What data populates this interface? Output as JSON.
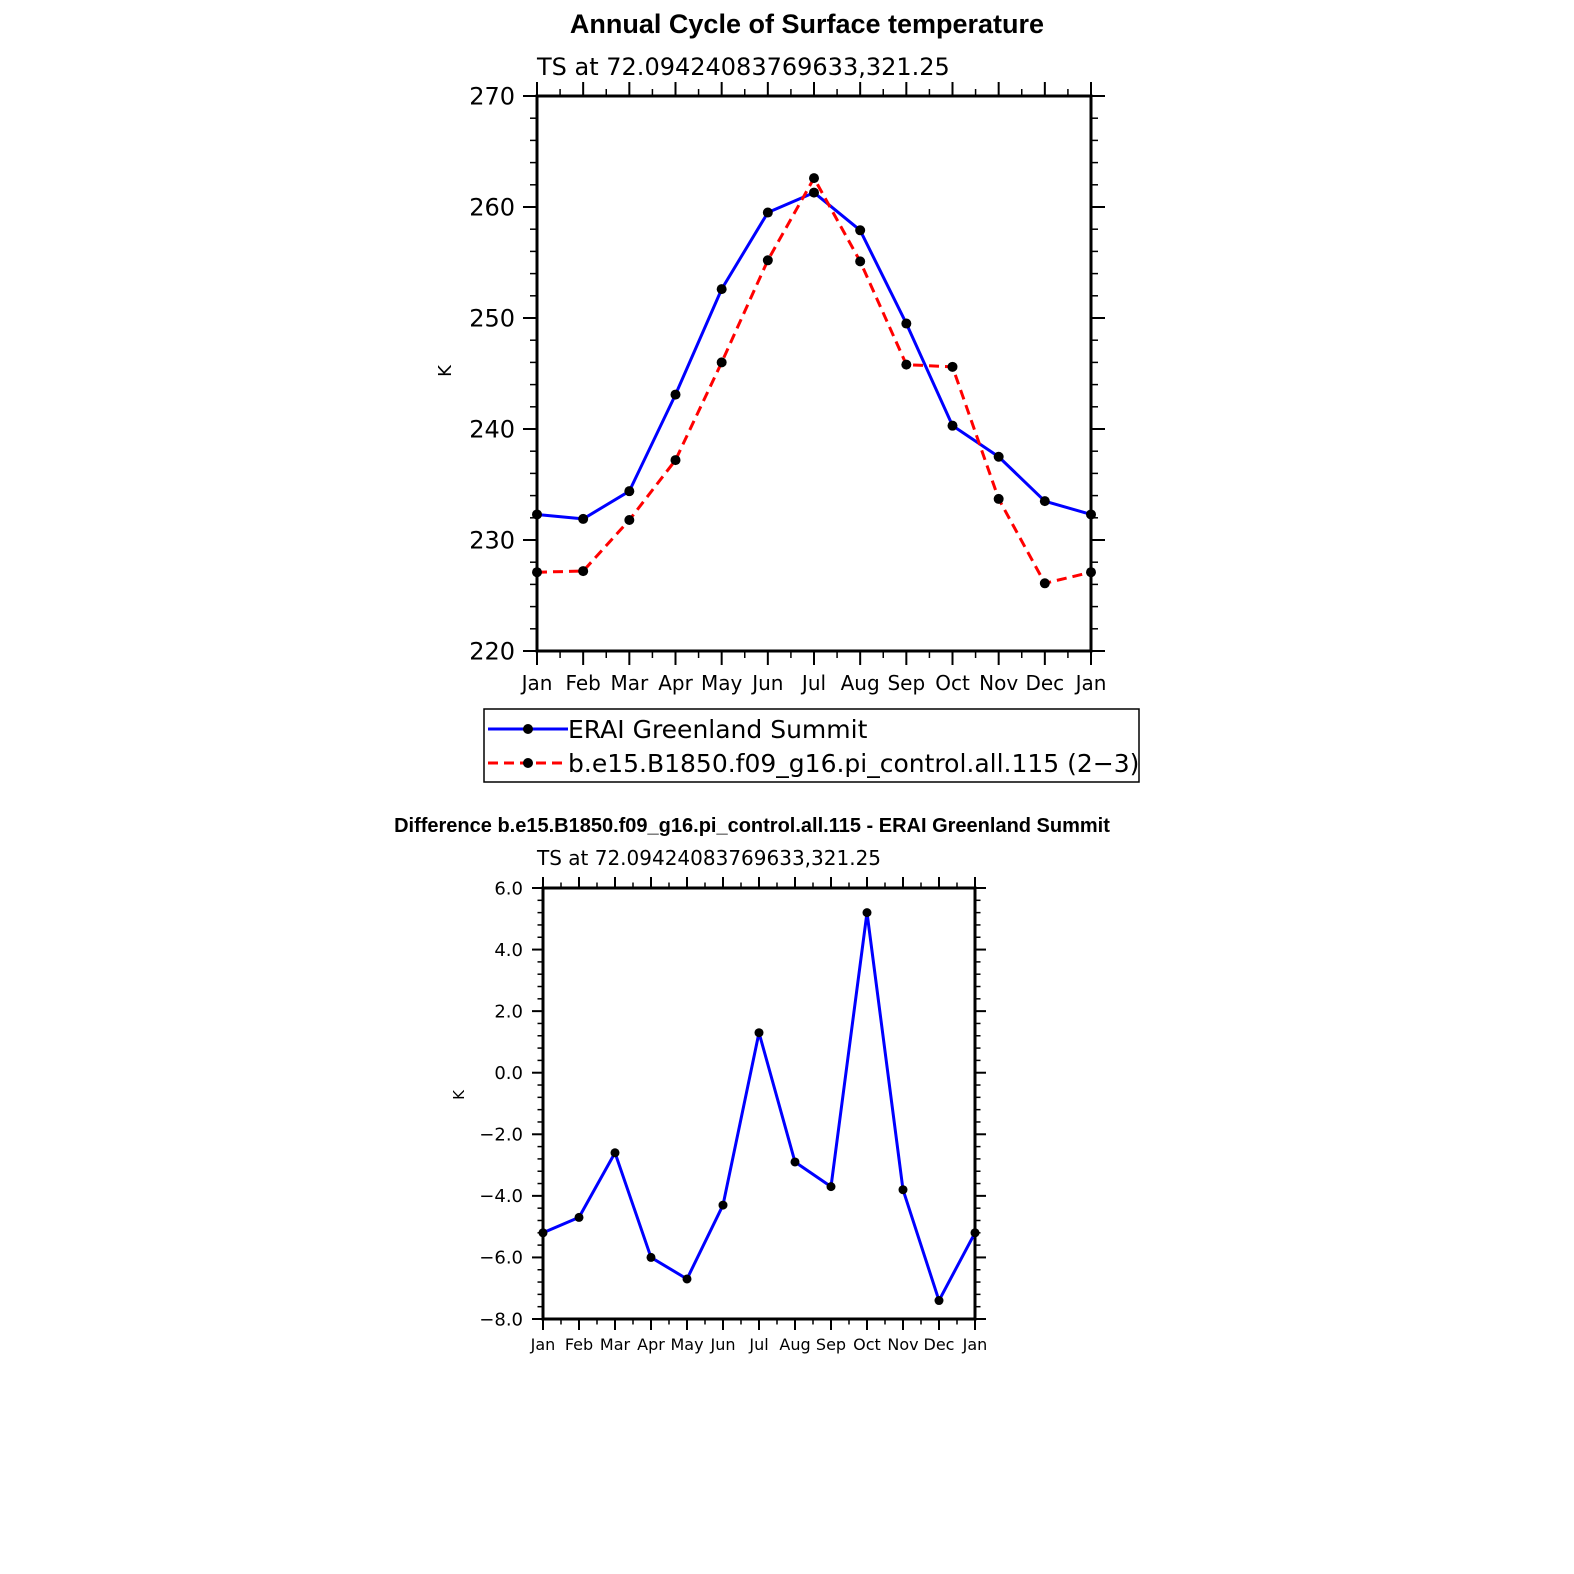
{
  "colors": {
    "series1": "#0000ff",
    "series2": "#ff0000",
    "marker": "#000000",
    "axis": "#000000"
  },
  "chart_data": [
    {
      "type": "line",
      "title": "Annual Cycle of Surface temperature",
      "subtitle": "TS at 72.09424083769633,321.25",
      "ylabel": "K",
      "xlabel": "",
      "categories": [
        "Jan",
        "Feb",
        "Mar",
        "Apr",
        "May",
        "Jun",
        "Jul",
        "Aug",
        "Sep",
        "Oct",
        "Nov",
        "Dec",
        "Jan"
      ],
      "ylim": [
        220,
        270
      ],
      "yticks": [
        "220",
        "230",
        "240",
        "250",
        "260",
        "270"
      ],
      "legend_position": "bottom",
      "series": [
        {
          "name": "ERAI Greenland Summit",
          "style": "solid",
          "color": "#0000ff",
          "values": [
            232.3,
            231.9,
            234.4,
            243.1,
            252.6,
            259.5,
            261.3,
            257.9,
            249.5,
            240.3,
            237.5,
            233.5,
            232.3
          ]
        },
        {
          "name": "b.e15.B1850.f09_g16.pi_control.all.115 (2−3)",
          "style": "dashed",
          "color": "#ff0000",
          "values": [
            227.1,
            227.2,
            231.8,
            237.2,
            246.0,
            255.2,
            262.6,
            255.1,
            245.8,
            245.6,
            233.7,
            226.1,
            227.1
          ]
        }
      ]
    },
    {
      "type": "line",
      "title": "Difference b.e15.B1850.f09_g16.pi_control.all.115 - ERAI Greenland Summit",
      "subtitle": "TS at 72.09424083769633,321.25",
      "ylabel": "K",
      "xlabel": "",
      "categories": [
        "Jan",
        "Feb",
        "Mar",
        "Apr",
        "May",
        "Jun",
        "Jul",
        "Aug",
        "Sep",
        "Oct",
        "Nov",
        "Dec",
        "Jan"
      ],
      "ylim": [
        -8,
        6
      ],
      "yticks": [
        "−8.0",
        "−6.0",
        "−4.0",
        "−2.0",
        "0.0",
        "2.0",
        "4.0",
        "6.0"
      ],
      "series": [
        {
          "color": "#0000ff",
          "values": [
            -5.2,
            -4.7,
            -2.6,
            -6.0,
            -6.7,
            -4.3,
            1.3,
            -2.9,
            -3.7,
            5.2,
            -3.8,
            -7.4,
            -5.2
          ]
        }
      ]
    }
  ]
}
